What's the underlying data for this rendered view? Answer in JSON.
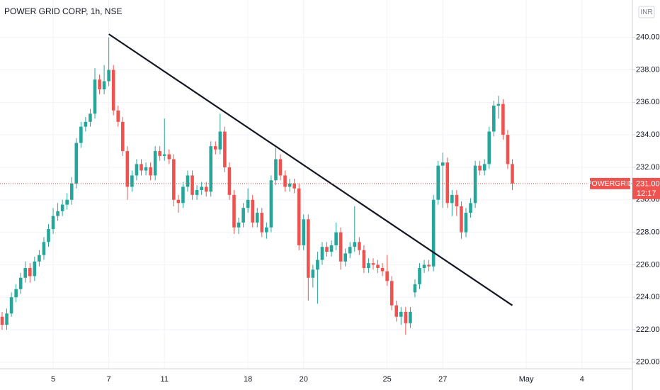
{
  "chart_data": {
    "type": "candlestick",
    "title": "POWER GRID CORP, 1h, NSE",
    "symbol": "POWERGRID",
    "currency": "INR",
    "last_price_label": "231.00",
    "countdown": "12:17",
    "up_color": "#26a69a",
    "down_color": "#ef5350",
    "grid": true,
    "ylim": [
      219.6,
      242.3
    ],
    "yticks": [
      {
        "value": 220,
        "label": "220.00"
      },
      {
        "value": 222,
        "label": "222.00"
      },
      {
        "value": 224,
        "label": "224.00"
      },
      {
        "value": 226,
        "label": "226.00"
      },
      {
        "value": 228,
        "label": "228.00"
      },
      {
        "value": 230,
        "label": "230.00"
      },
      {
        "value": 232,
        "label": "232.00"
      },
      {
        "value": 234,
        "label": "234.00"
      },
      {
        "value": 236,
        "label": "236.00"
      },
      {
        "value": 238,
        "label": "238.00"
      },
      {
        "value": 240,
        "label": "240.00"
      }
    ],
    "categories": [
      null,
      null,
      null,
      null,
      null,
      null,
      null,
      null,
      null,
      null,
      null,
      "5",
      null,
      null,
      null,
      null,
      null,
      null,
      null,
      null,
      null,
      null,
      null,
      "7",
      null,
      null,
      null,
      null,
      null,
      null,
      null,
      null,
      null,
      null,
      null,
      "11",
      null,
      null,
      null,
      null,
      null,
      null,
      null,
      null,
      null,
      null,
      null,
      null,
      null,
      null,
      null,
      null,
      null,
      "18",
      null,
      null,
      null,
      null,
      null,
      null,
      null,
      null,
      null,
      null,
      null,
      "20",
      null,
      null,
      null,
      null,
      null,
      null,
      null,
      null,
      null,
      null,
      null,
      null,
      null,
      null,
      null,
      null,
      null,
      "25",
      null,
      null,
      null,
      null,
      null,
      null,
      null,
      null,
      null,
      null,
      null,
      "27",
      null,
      null,
      null,
      null,
      null,
      null,
      null,
      null,
      null,
      null,
      null,
      null,
      null,
      null,
      null,
      null,
      null,
      "May",
      null,
      null,
      null,
      null,
      null,
      null,
      null,
      null,
      null,
      null,
      null,
      "4",
      null,
      null,
      null,
      null,
      null,
      null,
      null,
      null,
      null,
      null
    ],
    "open": [
      222.8,
      222.3,
      223.0,
      224.0,
      224.5,
      225.2,
      225.8,
      225.3,
      226.2,
      226.6,
      227.4,
      228.2,
      229.0,
      229.3,
      229.7,
      230.0,
      231.0,
      233.5,
      234.5,
      234.8,
      235.3,
      237.4,
      236.8,
      237.3,
      238.0,
      235.5,
      234.8,
      233.0,
      230.8,
      231.5,
      232.2,
      231.8,
      232.0,
      231.5,
      233.0,
      232.7,
      232.8,
      232.5,
      230.0,
      229.8,
      230.8,
      231.5,
      230.3,
      230.6,
      230.8,
      230.5,
      233.3,
      233.1,
      234.2,
      232.0,
      230.3,
      228.3,
      228.6,
      229.5,
      230.0,
      228.6,
      229.2,
      228.0,
      228.3,
      231.2,
      232.5,
      231.5,
      230.8,
      231.0,
      230.7,
      227.2,
      228.8,
      225.2,
      225.7,
      226.3,
      227.1,
      226.8,
      227.2,
      228.0,
      226.2,
      226.7,
      227.1,
      227.4,
      226.9,
      225.8,
      226.1,
      226.0,
      225.8,
      225.6,
      225.0,
      223.5,
      222.8,
      223.1,
      222.4,
      224.3,
      224.8,
      225.8,
      226.0,
      225.9,
      230.0,
      232.1,
      232.3,
      229.8,
      230.3,
      229.6,
      228.0,
      229.2,
      229.8,
      232.1,
      231.8,
      232.2,
      234.2,
      235.8,
      235.9,
      234.0,
      232.2,
      null,
      null,
      null,
      null,
      null,
      null,
      null,
      null,
      null,
      null,
      null,
      null,
      null,
      null,
      null,
      null,
      null,
      null,
      null,
      null,
      null,
      null,
      null,
      null,
      null
    ],
    "high": [
      223.1,
      223.3,
      224.3,
      224.8,
      225.5,
      226.2,
      226.1,
      226.5,
      226.9,
      227.7,
      228.5,
      229.5,
      229.8,
      230.0,
      230.4,
      231.4,
      233.8,
      234.8,
      235.1,
      235.6,
      238.1,
      237.7,
      238.3,
      240.0,
      238.3,
      235.8,
      235.1,
      233.3,
      231.8,
      232.5,
      232.5,
      232.3,
      232.3,
      233.3,
      233.3,
      235.0,
      233.1,
      232.8,
      230.3,
      231.1,
      231.8,
      231.8,
      230.9,
      231.1,
      231.1,
      233.6,
      233.6,
      235.3,
      234.5,
      232.3,
      230.6,
      228.9,
      229.8,
      230.7,
      230.3,
      229.5,
      229.5,
      228.6,
      231.5,
      233.2,
      232.8,
      231.8,
      231.3,
      231.3,
      231.0,
      229.1,
      229.1,
      226.0,
      226.8,
      227.4,
      227.4,
      227.5,
      228.6,
      228.3,
      227.0,
      227.4,
      229.6,
      227.7,
      227.2,
      226.4,
      226.4,
      226.3,
      226.1,
      226.6,
      225.3,
      223.8,
      223.4,
      223.4,
      223.4,
      225.1,
      226.1,
      226.3,
      226.3,
      230.3,
      232.4,
      232.9,
      232.6,
      230.6,
      230.6,
      229.9,
      229.5,
      230.1,
      232.4,
      232.4,
      232.5,
      234.5,
      236.1,
      236.4,
      236.2,
      234.3,
      232.5,
      null,
      null,
      null,
      null,
      null,
      null,
      null,
      null,
      null,
      null,
      null,
      null,
      null,
      null,
      null,
      null,
      null,
      null,
      null,
      null,
      null,
      null,
      null,
      null,
      null
    ],
    "low": [
      222.0,
      222.0,
      222.8,
      223.7,
      224.2,
      224.9,
      224.9,
      225.0,
      225.9,
      226.3,
      227.1,
      227.9,
      228.7,
      229.0,
      229.4,
      229.7,
      230.7,
      233.2,
      234.2,
      234.5,
      235.0,
      236.5,
      236.5,
      237.0,
      235.2,
      234.5,
      232.7,
      230.0,
      230.5,
      231.2,
      231.5,
      231.5,
      231.2,
      231.2,
      232.4,
      232.4,
      232.2,
      229.6,
      229.2,
      229.5,
      230.5,
      230.0,
      230.0,
      230.3,
      230.2,
      230.2,
      232.8,
      232.8,
      231.7,
      230.0,
      227.9,
      227.9,
      228.3,
      229.2,
      228.3,
      228.3,
      227.7,
      227.6,
      228.0,
      230.9,
      231.2,
      230.5,
      230.5,
      230.4,
      226.9,
      226.9,
      223.8,
      224.6,
      223.6,
      226.0,
      226.5,
      226.5,
      226.9,
      225.7,
      225.9,
      226.4,
      226.8,
      226.6,
      225.5,
      225.5,
      225.7,
      225.5,
      225.3,
      224.7,
      223.2,
      222.5,
      222.3,
      221.7,
      222.1,
      224.0,
      224.5,
      225.5,
      225.6,
      225.6,
      229.7,
      229.5,
      229.5,
      229.0,
      229.0,
      227.6,
      227.7,
      228.9,
      229.5,
      231.5,
      231.5,
      231.9,
      233.9,
      235.0,
      233.7,
      231.9,
      230.6,
      null,
      null,
      null,
      null,
      null,
      null,
      null,
      null,
      null,
      null,
      null,
      null,
      null,
      null,
      null,
      null,
      null,
      null,
      null,
      null,
      null,
      null,
      null,
      null,
      null
    ],
    "close": [
      222.3,
      223.0,
      224.0,
      224.5,
      225.2,
      225.8,
      225.3,
      226.2,
      226.6,
      227.4,
      228.2,
      229.0,
      229.3,
      229.7,
      230.0,
      231.0,
      233.5,
      234.5,
      234.8,
      235.3,
      237.4,
      236.8,
      237.3,
      238.0,
      235.5,
      234.8,
      233.0,
      230.8,
      231.5,
      232.2,
      231.8,
      232.0,
      231.5,
      233.0,
      232.7,
      232.8,
      232.5,
      230.0,
      229.8,
      230.8,
      231.5,
      230.3,
      230.6,
      230.8,
      230.5,
      233.3,
      233.1,
      234.2,
      232.0,
      230.3,
      228.3,
      228.6,
      229.5,
      230.0,
      228.6,
      229.2,
      228.0,
      228.3,
      231.2,
      232.5,
      231.5,
      230.8,
      231.0,
      230.7,
      227.2,
      228.8,
      225.2,
      225.7,
      226.3,
      227.1,
      226.8,
      227.2,
      228.0,
      226.2,
      226.7,
      227.1,
      227.4,
      226.9,
      225.8,
      226.1,
      226.0,
      225.8,
      225.6,
      225.0,
      223.5,
      222.8,
      223.1,
      222.4,
      223.1,
      224.8,
      225.8,
      226.0,
      225.9,
      230.0,
      232.1,
      232.3,
      229.8,
      230.3,
      229.6,
      228.0,
      229.2,
      229.8,
      232.1,
      231.8,
      232.2,
      234.2,
      235.8,
      235.9,
      234.0,
      232.2,
      231.0,
      null,
      null,
      null,
      null,
      null,
      null,
      null,
      null,
      null,
      null,
      null,
      null,
      null,
      null,
      null,
      null,
      null,
      null,
      null,
      null,
      null,
      null,
      null,
      null,
      null
    ],
    "trendline": {
      "x": [
        23,
        110
      ],
      "y": [
        240.2,
        223.5
      ],
      "color": "#131722"
    }
  }
}
